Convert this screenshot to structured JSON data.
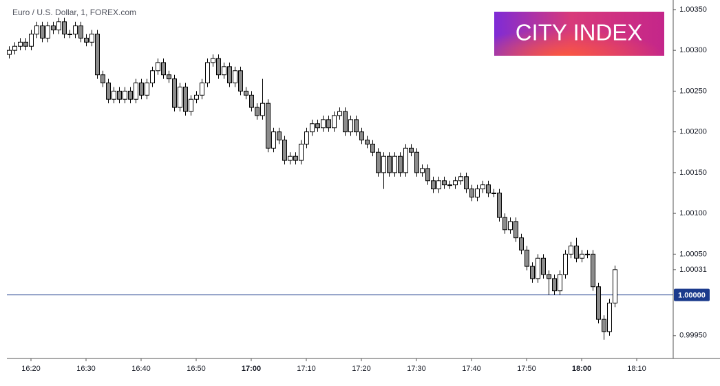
{
  "chart_data": {
    "type": "candlestick",
    "title": "Euro / U.S. Dollar, 1, FOREX.com",
    "logo": "CITY INDEX",
    "up_color": "#ffffff",
    "down_color": "#8c8c8c",
    "wick_color": "#000000",
    "x": [
      "16:16",
      "16:17",
      "16:18",
      "16:19",
      "16:20",
      "16:21",
      "16:22",
      "16:23",
      "16:24",
      "16:25",
      "16:26",
      "16:27",
      "16:28",
      "16:29",
      "16:30",
      "16:31",
      "16:32",
      "16:33",
      "16:34",
      "16:35",
      "16:36",
      "16:37",
      "16:38",
      "16:39",
      "16:40",
      "16:41",
      "16:42",
      "16:43",
      "16:44",
      "16:45",
      "16:46",
      "16:47",
      "16:48",
      "16:49",
      "16:50",
      "16:51",
      "16:52",
      "16:53",
      "16:54",
      "16:55",
      "16:56",
      "16:57",
      "16:58",
      "16:59",
      "17:00",
      "17:01",
      "17:02",
      "17:03",
      "17:04",
      "17:05",
      "17:06",
      "17:07",
      "17:08",
      "17:09",
      "17:10",
      "17:11",
      "17:12",
      "17:13",
      "17:14",
      "17:15",
      "17:16",
      "17:17",
      "17:18",
      "17:19",
      "17:20",
      "17:21",
      "17:22",
      "17:23",
      "17:24",
      "17:25",
      "17:26",
      "17:27",
      "17:28",
      "17:29",
      "17:30",
      "17:31",
      "17:32",
      "17:33",
      "17:34",
      "17:35",
      "17:36",
      "17:37",
      "17:38",
      "17:39",
      "17:40",
      "17:41",
      "17:42",
      "17:43",
      "17:44",
      "17:45",
      "17:46",
      "17:47",
      "17:48",
      "17:49",
      "17:50",
      "17:51",
      "17:52",
      "17:53",
      "17:54",
      "17:55",
      "17:56",
      "17:57",
      "17:58",
      "17:59",
      "18:00",
      "18:01",
      "18:02",
      "18:03",
      "18:04",
      "18:05",
      "18:06"
    ],
    "ohlc": [
      [
        1.00295,
        1.00305,
        1.0029,
        1.003
      ],
      [
        1.003,
        1.0031,
        1.00295,
        1.00305
      ],
      [
        1.00305,
        1.00315,
        1.003,
        1.0031
      ],
      [
        1.0031,
        1.00315,
        1.003,
        1.00305
      ],
      [
        1.00305,
        1.00325,
        1.003,
        1.0032
      ],
      [
        1.0032,
        1.00335,
        1.00315,
        1.0033
      ],
      [
        1.0033,
        1.00335,
        1.0031,
        1.00315
      ],
      [
        1.00315,
        1.00335,
        1.0031,
        1.0033
      ],
      [
        1.0033,
        1.00335,
        1.0032,
        1.00325
      ],
      [
        1.00325,
        1.0034,
        1.0032,
        1.00335
      ],
      [
        1.00335,
        1.0034,
        1.00315,
        1.0032
      ],
      [
        1.0032,
        1.00325,
        1.00315,
        1.0032
      ],
      [
        1.0032,
        1.00335,
        1.00315,
        1.0033
      ],
      [
        1.0033,
        1.00335,
        1.0031,
        1.00315
      ],
      [
        1.00315,
        1.0032,
        1.00305,
        1.0031
      ],
      [
        1.0031,
        1.00325,
        1.00305,
        1.0032
      ],
      [
        1.0032,
        1.00325,
        1.00265,
        1.0027
      ],
      [
        1.0027,
        1.00275,
        1.00255,
        1.0026
      ],
      [
        1.0026,
        1.00265,
        1.00235,
        1.0024
      ],
      [
        1.0024,
        1.00255,
        1.00235,
        1.0025
      ],
      [
        1.0025,
        1.00255,
        1.00235,
        1.0024
      ],
      [
        1.0024,
        1.00255,
        1.00235,
        1.0025
      ],
      [
        1.0025,
        1.00255,
        1.00235,
        1.0024
      ],
      [
        1.0024,
        1.00265,
        1.00235,
        1.0026
      ],
      [
        1.0026,
        1.00265,
        1.0024,
        1.00245
      ],
      [
        1.00245,
        1.00265,
        1.0024,
        1.0026
      ],
      [
        1.0026,
        1.0028,
        1.00255,
        1.00275
      ],
      [
        1.00275,
        1.0029,
        1.0027,
        1.00285
      ],
      [
        1.00285,
        1.0029,
        1.00265,
        1.0027
      ],
      [
        1.0027,
        1.00275,
        1.0026,
        1.00265
      ],
      [
        1.00265,
        1.0027,
        1.00225,
        1.0023
      ],
      [
        1.0023,
        1.0026,
        1.00225,
        1.00255
      ],
      [
        1.00255,
        1.0026,
        1.0022,
        1.00225
      ],
      [
        1.00225,
        1.00245,
        1.0022,
        1.0024
      ],
      [
        1.0024,
        1.0025,
        1.00235,
        1.00245
      ],
      [
        1.00245,
        1.00265,
        1.0024,
        1.0026
      ],
      [
        1.0026,
        1.0029,
        1.00255,
        1.00285
      ],
      [
        1.00285,
        1.00295,
        1.0028,
        1.0029
      ],
      [
        1.0029,
        1.00295,
        1.00265,
        1.0027
      ],
      [
        1.0027,
        1.00285,
        1.00265,
        1.0028
      ],
      [
        1.0028,
        1.00285,
        1.00255,
        1.0026
      ],
      [
        1.0026,
        1.0028,
        1.00255,
        1.00275
      ],
      [
        1.00275,
        1.0028,
        1.00245,
        1.0025
      ],
      [
        1.0025,
        1.00255,
        1.0024,
        1.00245
      ],
      [
        1.00245,
        1.0025,
        1.00225,
        1.0023
      ],
      [
        1.0023,
        1.00235,
        1.00215,
        1.0022
      ],
      [
        1.0022,
        1.00265,
        1.00215,
        1.00235
      ],
      [
        1.00235,
        1.0024,
        1.00175,
        1.0018
      ],
      [
        1.0018,
        1.00205,
        1.00175,
        1.002
      ],
      [
        1.002,
        1.00205,
        1.00185,
        1.0019
      ],
      [
        1.0019,
        1.00195,
        1.0016,
        1.00165
      ],
      [
        1.00165,
        1.00175,
        1.0016,
        1.0017
      ],
      [
        1.0017,
        1.00175,
        1.0016,
        1.00165
      ],
      [
        1.00165,
        1.0019,
        1.0016,
        1.00185
      ],
      [
        1.00185,
        1.00205,
        1.0018,
        1.002
      ],
      [
        1.002,
        1.00215,
        1.00195,
        1.0021
      ],
      [
        1.0021,
        1.00215,
        1.002,
        1.00205
      ],
      [
        1.00205,
        1.0022,
        1.002,
        1.00215
      ],
      [
        1.00215,
        1.0022,
        1.002,
        1.00205
      ],
      [
        1.00205,
        1.00225,
        1.002,
        1.0022
      ],
      [
        1.0022,
        1.0023,
        1.00215,
        1.00225
      ],
      [
        1.00225,
        1.0023,
        1.00195,
        1.002
      ],
      [
        1.002,
        1.0022,
        1.00195,
        1.00215
      ],
      [
        1.00215,
        1.0022,
        1.00195,
        1.002
      ],
      [
        1.002,
        1.00205,
        1.00185,
        1.0019
      ],
      [
        1.0019,
        1.00195,
        1.0018,
        1.00185
      ],
      [
        1.00185,
        1.0019,
        1.0017,
        1.00175
      ],
      [
        1.00175,
        1.0018,
        1.00145,
        1.0015
      ],
      [
        1.0015,
        1.00175,
        1.0013,
        1.0017
      ],
      [
        1.0017,
        1.00175,
        1.00145,
        1.0015
      ],
      [
        1.0015,
        1.00175,
        1.00145,
        1.0017
      ],
      [
        1.0017,
        1.00175,
        1.00145,
        1.0015
      ],
      [
        1.0015,
        1.00185,
        1.00145,
        1.0018
      ],
      [
        1.0018,
        1.00185,
        1.0017,
        1.00175
      ],
      [
        1.00175,
        1.0018,
        1.00145,
        1.0015
      ],
      [
        1.0015,
        1.0016,
        1.00145,
        1.00155
      ],
      [
        1.00155,
        1.0016,
        1.00135,
        1.0014
      ],
      [
        1.0014,
        1.00145,
        1.00125,
        1.0013
      ],
      [
        1.0013,
        1.00145,
        1.00125,
        1.0014
      ],
      [
        1.0014,
        1.00145,
        1.0013,
        1.00135
      ],
      [
        1.00135,
        1.0014,
        1.0013,
        1.00135
      ],
      [
        1.00135,
        1.00145,
        1.0013,
        1.0014
      ],
      [
        1.0014,
        1.0015,
        1.00135,
        1.00145
      ],
      [
        1.00145,
        1.0015,
        1.00125,
        1.0013
      ],
      [
        1.0013,
        1.00135,
        1.00115,
        1.0012
      ],
      [
        1.0012,
        1.00135,
        1.00115,
        1.0013
      ],
      [
        1.0013,
        1.0014,
        1.00125,
        1.00135
      ],
      [
        1.00135,
        1.0014,
        1.0012,
        1.00125
      ],
      [
        1.00125,
        1.0013,
        1.0012,
        1.00125
      ],
      [
        1.00125,
        1.0013,
        1.0009,
        1.00095
      ],
      [
        1.00095,
        1.001,
        1.00075,
        1.0008
      ],
      [
        1.0008,
        1.00095,
        1.00075,
        1.0009
      ],
      [
        1.0009,
        1.00095,
        1.00065,
        1.0007
      ],
      [
        1.0007,
        1.00075,
        1.0005,
        1.00055
      ],
      [
        1.00055,
        1.0006,
        1.0003,
        1.00035
      ],
      [
        1.00035,
        1.0004,
        1.00015,
        1.0002
      ],
      [
        1.0002,
        1.0005,
        1.00015,
        1.00045
      ],
      [
        1.00045,
        1.0005,
        1.0002,
        1.00025
      ],
      [
        1.00025,
        1.0003,
        1,
        1.0002
      ],
      [
        1.0002,
        1.00025,
        1,
        1.00005
      ],
      [
        1.00005,
        1.0003,
        1,
        1.00025
      ],
      [
        1.00025,
        1.00055,
        1.0002,
        1.0005
      ],
      [
        1.0005,
        1.00065,
        1.00045,
        1.0006
      ],
      [
        1.0006,
        1.0007,
        1.0004,
        1.00045
      ],
      [
        1.00045,
        1.00055,
        1.0004,
        1.0005
      ],
      [
        1.0005,
        1.00055,
        1.00045,
        1.0005
      ],
      [
        1.0005,
        1.00055,
        1.00005,
        1.0001
      ],
      [
        1.0001,
        1.00015,
        0.99965,
        0.9997
      ],
      [
        0.9997,
        0.99975,
        0.99945,
        0.99955
      ],
      [
        0.99955,
        0.99995,
        0.9995,
        0.9999
      ],
      [
        0.9999,
        1.00036,
        0.99985,
        1.00031
      ]
    ],
    "ylim": [
      0.99922,
      1.00355
    ],
    "yticks": [
      {
        "value": 0.9995,
        "label": "0.99950"
      },
      {
        "value": 1.0005,
        "label": "1.00050"
      },
      {
        "value": 1.001,
        "label": "1.00100"
      },
      {
        "value": 1.0015,
        "label": "1.00150"
      },
      {
        "value": 1.002,
        "label": "1.00200"
      },
      {
        "value": 1.0025,
        "label": "1.00250"
      },
      {
        "value": 1.003,
        "label": "1.00300"
      },
      {
        "value": 1.0035,
        "label": "1.00350"
      }
    ],
    "xticks": [
      "16:20",
      "16:30",
      "16:40",
      "16:50",
      "17:00",
      "17:10",
      "17:20",
      "17:30",
      "17:40",
      "17:50",
      "18:00",
      "18:10"
    ],
    "reference_line": {
      "value": 1,
      "label": "1.00000",
      "color": "#1b3a8c"
    },
    "last_price": {
      "value": 1.00031,
      "label": "1.00031"
    }
  }
}
